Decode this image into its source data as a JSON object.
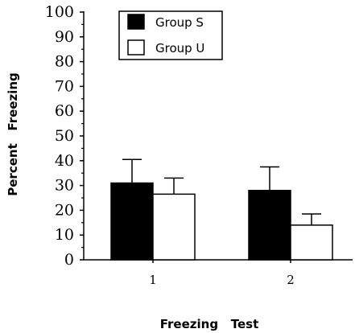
{
  "chart_data": {
    "type": "bar",
    "categories": [
      "1",
      "2"
    ],
    "xlabel": "Freezing   Test",
    "ylabel": "Percent   Freezing",
    "ylim": [
      0,
      100
    ],
    "yticks": [
      0,
      10,
      20,
      30,
      40,
      50,
      60,
      70,
      80,
      90,
      100
    ],
    "error_bars": "upper",
    "legend_position": "top-left",
    "grid": false,
    "series": [
      {
        "name": "Group S",
        "values": [
          31,
          28
        ],
        "errors": [
          9.5,
          9.5
        ],
        "color": "#000000"
      },
      {
        "name": "Group U",
        "values": [
          26.5,
          14
        ],
        "errors": [
          6.5,
          4.5
        ],
        "color": "#ffffff"
      }
    ]
  }
}
